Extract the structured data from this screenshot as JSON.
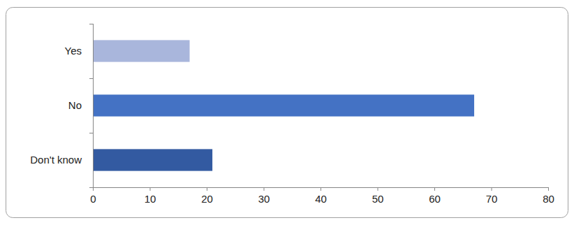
{
  "chart_data": {
    "type": "bar",
    "orientation": "horizontal",
    "categories": [
      "Yes",
      "No",
      "Don't know"
    ],
    "values": [
      17,
      67,
      21
    ],
    "colors": [
      "#a9b6dc",
      "#4472c4",
      "#335aa1"
    ],
    "xlim": [
      0,
      80
    ],
    "xticks": [
      0,
      10,
      20,
      30,
      40,
      50,
      60,
      70,
      80
    ],
    "grid": false
  }
}
